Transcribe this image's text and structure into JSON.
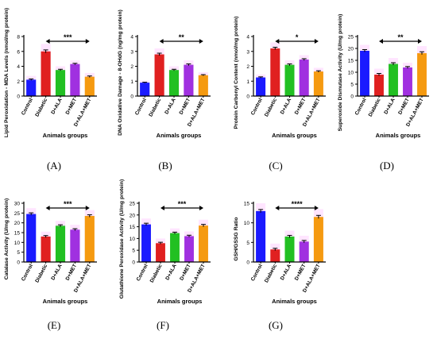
{
  "chart_data": [
    {
      "type": "bar",
      "panel": "(A)",
      "categories": [
        "Control",
        "Diabetic",
        "D+ALA",
        "D+MET",
        "D+ALA+MET"
      ],
      "values": [
        2.2,
        6.0,
        3.5,
        4.3,
        2.6
      ],
      "errors": [
        0.1,
        0.2,
        0.1,
        0.1,
        0.1
      ],
      "ylabel": "Lipid Peroxidation - MDA Levels (nmol/mg protein)",
      "xlabel": "Animals groups",
      "ylim": [
        0,
        8
      ],
      "yticks": [
        "0",
        "2",
        "4",
        "6",
        "8"
      ],
      "significance": "***"
    },
    {
      "type": "bar",
      "panel": "(B)",
      "categories": [
        "Control",
        "Diabetic",
        "D+ALA",
        "D+MET",
        "D+ALA+MET"
      ],
      "values": [
        0.9,
        2.8,
        1.75,
        2.1,
        1.4
      ],
      "errors": [
        0.03,
        0.08,
        0.05,
        0.06,
        0.04
      ],
      "ylabel": "DNA Oxidative Damage - 8-OHdG (ng/mg protein)",
      "xlabel": "Animals groups",
      "ylim": [
        0,
        4
      ],
      "yticks": [
        "0",
        "1",
        "2",
        "3",
        "4"
      ],
      "significance": "**"
    },
    {
      "type": "bar",
      "panel": "(C)",
      "categories": [
        "Control",
        "Diabetic",
        "D+ALA",
        "D+MET",
        "D+ALA+MET"
      ],
      "values": [
        1.25,
        3.2,
        2.1,
        2.45,
        1.65
      ],
      "errors": [
        0.04,
        0.08,
        0.06,
        0.06,
        0.05
      ],
      "ylabel": "Protein Carbonyl Content (nmol/mg protein)",
      "xlabel": "Animals groups",
      "ylim": [
        0,
        4
      ],
      "yticks": [
        "0",
        "1",
        "2",
        "3",
        "4"
      ],
      "significance": "*"
    },
    {
      "type": "bar",
      "panel": "(D)",
      "categories": [
        "Control",
        "Diabetic",
        "D+ALA",
        "D+MET",
        "D+ALA+MET"
      ],
      "values": [
        19.0,
        9.0,
        13.5,
        12.0,
        18.0
      ],
      "errors": [
        0.5,
        0.5,
        0.5,
        0.4,
        0.6
      ],
      "ylabel": "Superoxide Dismutase Activity (U/mg protein)",
      "xlabel": "Animals groups",
      "ylim": [
        0,
        25
      ],
      "yticks": [
        "0",
        "5",
        "10",
        "15",
        "20",
        "25"
      ],
      "significance": "**"
    },
    {
      "type": "bar",
      "panel": "(E)",
      "categories": [
        "Control",
        "Diabetic",
        "D+ALA",
        "D+MET",
        "D+ALA+MET"
      ],
      "values": [
        24.5,
        13.0,
        18.5,
        16.5,
        23.5
      ],
      "errors": [
        0.6,
        0.5,
        0.5,
        0.5,
        0.6
      ],
      "ylabel": "Catalase Activity (U/mg protein)",
      "xlabel": "Animals groups",
      "ylim": [
        0,
        30
      ],
      "yticks": [
        "0",
        "5",
        "10",
        "15",
        "20",
        "25",
        "30"
      ],
      "significance": "***"
    },
    {
      "type": "bar",
      "panel": "(F)",
      "categories": [
        "Control",
        "Diabetic",
        "D+ALA",
        "D+MET",
        "D+ALA+MET"
      ],
      "values": [
        16.0,
        8.0,
        12.3,
        11.0,
        15.5
      ],
      "errors": [
        0.5,
        0.4,
        0.4,
        0.4,
        0.5
      ],
      "ylabel": "Glutathione Peroxidase Activity (U/mg protein)",
      "xlabel": "Animals groups",
      "ylim": [
        0,
        25
      ],
      "yticks": [
        "0",
        "5",
        "10",
        "15",
        "20",
        "25"
      ],
      "significance": "***"
    },
    {
      "type": "bar",
      "panel": "(G)",
      "categories": [
        "Control",
        "Diabetic",
        "D+ALA",
        "D+MET",
        "D+ALA+MET"
      ],
      "values": [
        13.0,
        3.2,
        6.5,
        5.2,
        11.5
      ],
      "errors": [
        0.4,
        0.3,
        0.3,
        0.3,
        0.4
      ],
      "ylabel": "GSH/GSSG Ratio",
      "xlabel": "Animals groups",
      "ylim": [
        0,
        15
      ],
      "yticks": [
        "0",
        "5",
        "10",
        "15"
      ],
      "significance": "****"
    }
  ],
  "colors": {
    "bars": [
      "#1a1aff",
      "#e02020",
      "#22c022",
      "#a030e0",
      "#f59a10"
    ],
    "error_halo": "#ffd0ff",
    "axis": "#000000"
  }
}
